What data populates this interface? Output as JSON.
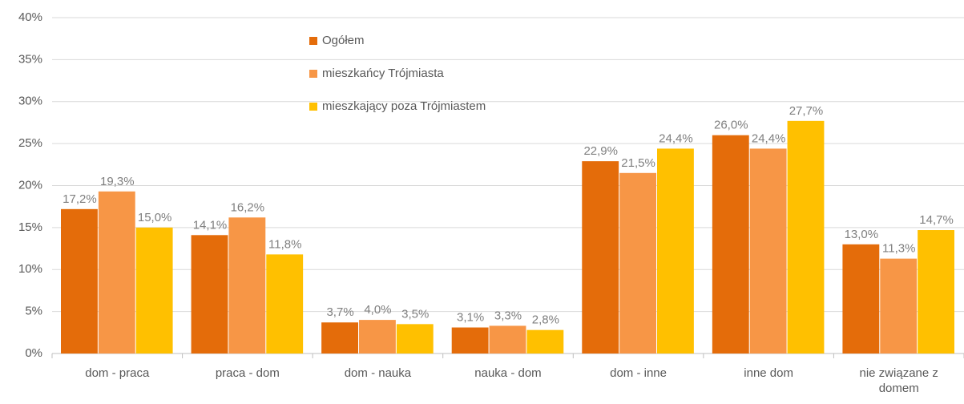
{
  "chart_data": {
    "type": "bar",
    "categories": [
      "dom - praca",
      "praca - dom",
      "dom - nauka",
      "nauka - dom",
      "dom - inne",
      "inne dom",
      "nie związane z domem"
    ],
    "series": [
      {
        "name": "Ogółem",
        "color": "#e46c0a",
        "values": [
          17.2,
          14.1,
          3.7,
          3.1,
          22.9,
          26.0,
          13.0
        ],
        "value_labels": [
          "17,2%",
          "14,1%",
          "3,7%",
          "3,1%",
          "22,9%",
          "26,0%",
          "13,0%"
        ]
      },
      {
        "name": "mieszkańcy Trójmiasta",
        "color": "#f79646",
        "values": [
          19.3,
          16.2,
          4.0,
          3.3,
          21.5,
          24.4,
          11.3
        ],
        "value_labels": [
          "19,3%",
          "16,2%",
          "4,0%",
          "3,3%",
          "21,5%",
          "24,4%",
          "11,3%"
        ]
      },
      {
        "name": "mieszkający poza Trójmiastem",
        "color": "#ffc000",
        "values": [
          15.0,
          11.8,
          3.5,
          2.8,
          24.4,
          27.7,
          14.7
        ],
        "value_labels": [
          "15,0%",
          "11,8%",
          "3,5%",
          "2,8%",
          "24,4%",
          "27,7%",
          "14,7%"
        ]
      }
    ],
    "ylim": [
      0,
      40
    ],
    "yticks": [
      {
        "value": 0,
        "label": "0%"
      },
      {
        "value": 5,
        "label": "5%"
      },
      {
        "value": 10,
        "label": "10%"
      },
      {
        "value": 15,
        "label": "15%"
      },
      {
        "value": 20,
        "label": "20%"
      },
      {
        "value": 25,
        "label": "25%"
      },
      {
        "value": 30,
        "label": "30%"
      },
      {
        "value": 35,
        "label": "35%"
      },
      {
        "value": 40,
        "label": "40%"
      }
    ],
    "grid": true,
    "legend": "top"
  }
}
